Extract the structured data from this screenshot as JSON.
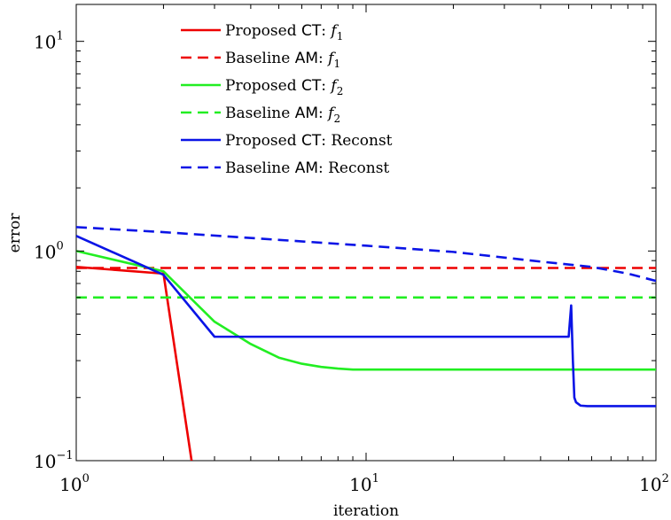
{
  "chart_data": {
    "type": "line",
    "title": "",
    "xlabel": "iteration",
    "ylabel": "error",
    "xscale": "log",
    "yscale": "log",
    "xlim": [
      1,
      100
    ],
    "ylim": [
      0.1,
      15
    ],
    "x_ticks": [
      {
        "value": 1,
        "base": "10",
        "exp": "0"
      },
      {
        "value": 10,
        "base": "10",
        "exp": "1"
      },
      {
        "value": 100,
        "base": "10",
        "exp": "2"
      }
    ],
    "y_ticks": [
      {
        "value": 0.1,
        "base": "10",
        "exp": "−1"
      },
      {
        "value": 1,
        "base": "10",
        "exp": "0"
      },
      {
        "value": 10,
        "base": "10",
        "exp": "1"
      }
    ],
    "grid": false,
    "legend_position": "top",
    "series": [
      {
        "name": "Proposed CT: f1",
        "legend": {
          "prefix": "Proposed",
          "method": "CT",
          "suffix": ":",
          "var": "f",
          "sub": "1"
        },
        "color": "#ee0000",
        "dash": "solid",
        "x": [
          1,
          2,
          2.5
        ],
        "y": [
          0.84,
          0.78,
          0.1
        ]
      },
      {
        "name": "Baseline AM: f1",
        "legend": {
          "prefix": "Baseline",
          "method": "AM",
          "suffix": ":",
          "var": "f",
          "sub": "1"
        },
        "color": "#ee0000",
        "dash": "dashed",
        "x": [
          1,
          100
        ],
        "y": [
          0.83,
          0.83
        ]
      },
      {
        "name": "Proposed CT: f2",
        "legend": {
          "prefix": "Proposed",
          "method": "CT",
          "suffix": ":",
          "var": "f",
          "sub": "2"
        },
        "color": "#22ee22",
        "dash": "solid",
        "x": [
          1,
          2,
          3,
          4,
          5,
          6,
          7,
          8,
          9,
          10,
          20,
          50,
          100
        ],
        "y": [
          1.0,
          0.8,
          0.46,
          0.36,
          0.31,
          0.29,
          0.28,
          0.275,
          0.272,
          0.272,
          0.272,
          0.272,
          0.272
        ]
      },
      {
        "name": "Baseline AM: f2",
        "legend": {
          "prefix": "Baseline",
          "method": "AM",
          "suffix": ":",
          "var": "f",
          "sub": "2"
        },
        "color": "#22ee22",
        "dash": "dashed",
        "x": [
          1,
          100
        ],
        "y": [
          0.6,
          0.6
        ]
      },
      {
        "name": "Proposed CT: Reconst",
        "legend": {
          "prefix": "Proposed",
          "method": "CT",
          "suffix": ": Reconst",
          "var": "",
          "sub": ""
        },
        "color": "#0a14e6",
        "dash": "solid",
        "x": [
          1,
          2,
          3,
          50,
          51,
          51.7,
          52.3,
          53,
          55,
          58,
          60,
          100
        ],
        "y": [
          1.18,
          0.77,
          0.39,
          0.39,
          0.55,
          0.3,
          0.2,
          0.19,
          0.183,
          0.182,
          0.182,
          0.182
        ]
      },
      {
        "name": "Baseline AM: Reconst",
        "legend": {
          "prefix": "Baseline",
          "method": "AM",
          "suffix": ": Reconst",
          "var": "",
          "sub": ""
        },
        "color": "#0a14e6",
        "dash": "dashed",
        "x": [
          1,
          2,
          5,
          10,
          20,
          40,
          60,
          80,
          100
        ],
        "y": [
          1.3,
          1.23,
          1.13,
          1.06,
          0.99,
          0.89,
          0.84,
          0.78,
          0.72
        ]
      }
    ]
  }
}
